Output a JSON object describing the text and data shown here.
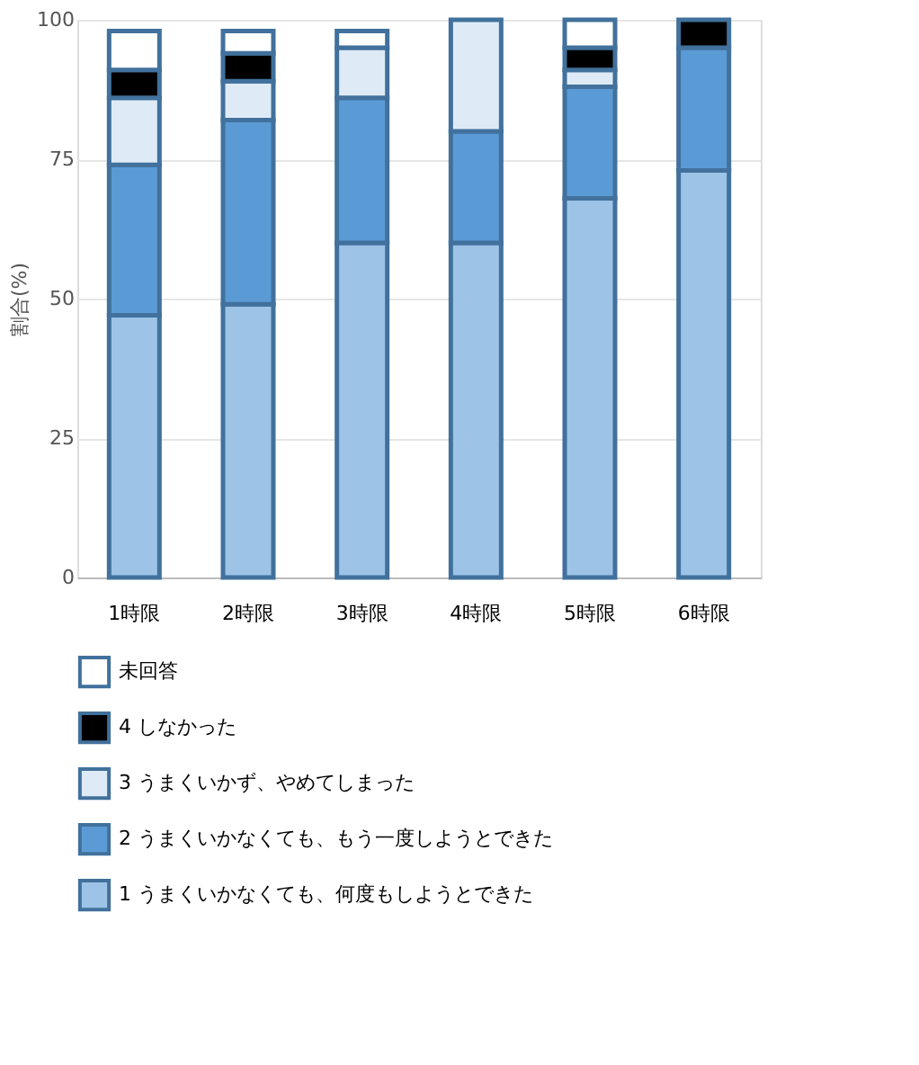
{
  "chart_data": {
    "type": "bar",
    "stacked": true,
    "ylabel": "割合(%)",
    "categories": [
      "1時限",
      "2時限",
      "3時限",
      "4時限",
      "5時限",
      "6時限"
    ],
    "series": [
      {
        "name": "1 うまくいかなくても、何度もしようとできた",
        "color": "#9dc3e6",
        "values": [
          47,
          49,
          60,
          60,
          68,
          73
        ]
      },
      {
        "name": "2 うまくいかなくても、もう一度しようとできた",
        "color": "#5b9bd5",
        "values": [
          27,
          33,
          26,
          20,
          20,
          22
        ]
      },
      {
        "name": "3 うまくいかず、やめてしまった",
        "color": "#deebf7",
        "values": [
          12,
          7,
          9,
          20,
          3,
          null
        ]
      },
      {
        "name": "4 しなかった",
        "color": "#000000",
        "values": [
          5,
          5,
          null,
          null,
          4,
          5
        ]
      },
      {
        "name": "未回答",
        "color": "#ffffff",
        "values": [
          7,
          4,
          3,
          null,
          5,
          null
        ]
      }
    ],
    "ylim": [
      0,
      100
    ],
    "yticks": [
      0,
      25,
      50,
      75,
      100
    ],
    "grid": "y",
    "legend": "bottom"
  }
}
